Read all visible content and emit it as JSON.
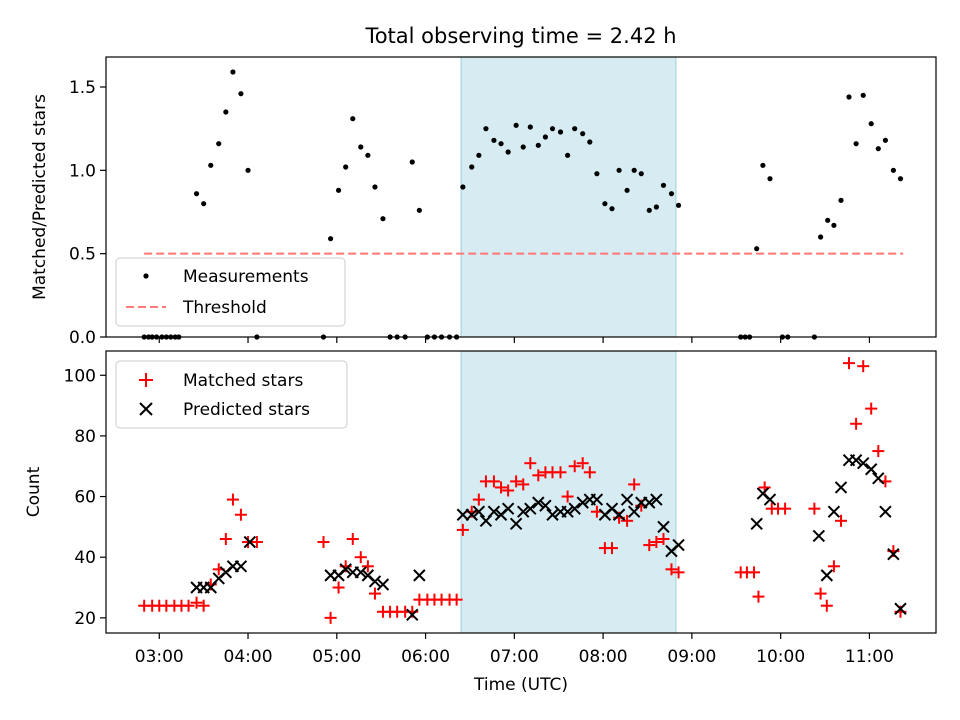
{
  "title": "Total observing time = 2.42 h",
  "chart_data": [
    {
      "type": "scatter",
      "ylabel": "Matched/Predicted stars",
      "xlim": [
        2.4,
        11.75
      ],
      "ylim": [
        0,
        1.68
      ],
      "y_ticks": [
        0.0,
        0.5,
        1.0,
        1.5
      ],
      "y_tick_labels": [
        "0.0",
        "0.5",
        "1.0",
        "1.5"
      ],
      "shaded_span": [
        6.4,
        8.82
      ],
      "legend": {
        "position": "lower-left",
        "entries": [
          "Measurements",
          "Threshold"
        ]
      },
      "threshold": {
        "name": "Threshold",
        "y": 0.5,
        "x_range": [
          2.83,
          11.38
        ],
        "color": "#ff7777",
        "style": "dashed"
      },
      "series": [
        {
          "name": "Measurements",
          "color": "#000000",
          "points": [
            [
              2.83,
              0
            ],
            [
              2.88,
              0
            ],
            [
              2.92,
              0
            ],
            [
              2.97,
              0
            ],
            [
              3.03,
              0
            ],
            [
              3.08,
              0
            ],
            [
              3.13,
              0
            ],
            [
              3.18,
              0
            ],
            [
              3.22,
              0
            ],
            [
              3.42,
              0.86
            ],
            [
              3.5,
              0.8
            ],
            [
              3.58,
              1.03
            ],
            [
              3.67,
              1.16
            ],
            [
              3.75,
              1.35
            ],
            [
              3.83,
              1.59
            ],
            [
              3.92,
              1.46
            ],
            [
              4.0,
              1.0
            ],
            [
              4.1,
              0
            ],
            [
              4.85,
              0
            ],
            [
              4.93,
              0.59
            ],
            [
              5.02,
              0.88
            ],
            [
              5.1,
              1.02
            ],
            [
              5.18,
              1.31
            ],
            [
              5.27,
              1.14
            ],
            [
              5.35,
              1.09
            ],
            [
              5.43,
              0.9
            ],
            [
              5.52,
              0.71
            ],
            [
              5.6,
              0
            ],
            [
              5.68,
              0
            ],
            [
              5.77,
              0
            ],
            [
              5.85,
              1.05
            ],
            [
              5.93,
              0.76
            ],
            [
              6.02,
              0
            ],
            [
              6.1,
              0
            ],
            [
              6.18,
              0
            ],
            [
              6.27,
              0
            ],
            [
              6.35,
              0
            ],
            [
              6.42,
              0.9
            ],
            [
              6.52,
              1.02
            ],
            [
              6.6,
              1.09
            ],
            [
              6.68,
              1.25
            ],
            [
              6.77,
              1.18
            ],
            [
              6.85,
              1.16
            ],
            [
              6.93,
              1.11
            ],
            [
              7.02,
              1.27
            ],
            [
              7.1,
              1.14
            ],
            [
              7.18,
              1.26
            ],
            [
              7.27,
              1.15
            ],
            [
              7.35,
              1.2
            ],
            [
              7.43,
              1.25
            ],
            [
              7.52,
              1.23
            ],
            [
              7.6,
              1.09
            ],
            [
              7.68,
              1.25
            ],
            [
              7.77,
              1.22
            ],
            [
              7.85,
              1.17
            ],
            [
              7.93,
              0.98
            ],
            [
              8.02,
              0.8
            ],
            [
              8.1,
              0.77
            ],
            [
              8.18,
              1.0
            ],
            [
              8.27,
              0.88
            ],
            [
              8.35,
              1.0
            ],
            [
              8.43,
              0.98
            ],
            [
              8.52,
              0.76
            ],
            [
              8.6,
              0.78
            ],
            [
              8.68,
              0.91
            ],
            [
              8.77,
              0.86
            ],
            [
              8.85,
              0.79
            ],
            [
              9.55,
              0
            ],
            [
              9.6,
              0
            ],
            [
              9.65,
              0
            ],
            [
              9.73,
              0.53
            ],
            [
              9.8,
              1.03
            ],
            [
              9.88,
              0.95
            ],
            [
              10.02,
              0
            ],
            [
              10.08,
              0
            ],
            [
              10.38,
              0
            ],
            [
              10.45,
              0.6
            ],
            [
              10.53,
              0.7
            ],
            [
              10.6,
              0.67
            ],
            [
              10.68,
              0.82
            ],
            [
              10.77,
              1.44
            ],
            [
              10.85,
              1.16
            ],
            [
              10.93,
              1.45
            ],
            [
              11.02,
              1.28
            ],
            [
              11.1,
              1.13
            ],
            [
              11.18,
              1.18
            ],
            [
              11.27,
              1.0
            ],
            [
              11.35,
              0.95
            ]
          ]
        }
      ]
    },
    {
      "type": "scatter",
      "xlabel": "Time (UTC)",
      "ylabel": "Count",
      "xlim": [
        2.4,
        11.75
      ],
      "ylim": [
        15,
        108
      ],
      "x_ticks": [
        3,
        4,
        5,
        6,
        7,
        8,
        9,
        10,
        11
      ],
      "x_tick_labels": [
        "03:00",
        "04:00",
        "05:00",
        "06:00",
        "07:00",
        "08:00",
        "09:00",
        "10:00",
        "11:00"
      ],
      "y_ticks": [
        20,
        40,
        60,
        80,
        100
      ],
      "y_tick_labels": [
        "20",
        "40",
        "60",
        "80",
        "100"
      ],
      "shaded_span": [
        6.4,
        8.82
      ],
      "legend": {
        "position": "upper-left",
        "entries": [
          "Matched stars",
          "Predicted stars"
        ]
      },
      "series": [
        {
          "name": "Matched stars",
          "marker": "+",
          "color": "#ff0000",
          "points": [
            [
              2.83,
              24
            ],
            [
              2.92,
              24
            ],
            [
              3.0,
              24
            ],
            [
              3.08,
              24
            ],
            [
              3.17,
              24
            ],
            [
              3.25,
              24
            ],
            [
              3.33,
              24
            ],
            [
              3.42,
              25
            ],
            [
              3.5,
              24
            ],
            [
              3.58,
              31
            ],
            [
              3.67,
              36
            ],
            [
              3.75,
              46
            ],
            [
              3.83,
              59
            ],
            [
              3.92,
              54
            ],
            [
              4.0,
              45
            ],
            [
              4.1,
              45
            ],
            [
              4.85,
              45
            ],
            [
              4.93,
              20
            ],
            [
              5.02,
              30
            ],
            [
              5.1,
              37
            ],
            [
              5.18,
              46
            ],
            [
              5.27,
              40
            ],
            [
              5.35,
              37
            ],
            [
              5.43,
              28
            ],
            [
              5.52,
              22
            ],
            [
              5.6,
              22
            ],
            [
              5.68,
              22
            ],
            [
              5.77,
              22
            ],
            [
              5.85,
              22
            ],
            [
              5.93,
              26
            ],
            [
              6.02,
              26
            ],
            [
              6.1,
              26
            ],
            [
              6.18,
              26
            ],
            [
              6.27,
              26
            ],
            [
              6.35,
              26
            ],
            [
              6.42,
              49
            ],
            [
              6.52,
              55
            ],
            [
              6.6,
              59
            ],
            [
              6.68,
              65
            ],
            [
              6.77,
              65
            ],
            [
              6.85,
              63
            ],
            [
              6.93,
              62
            ],
            [
              7.02,
              65
            ],
            [
              7.1,
              64
            ],
            [
              7.18,
              71
            ],
            [
              7.27,
              67
            ],
            [
              7.35,
              68
            ],
            [
              7.43,
              68
            ],
            [
              7.52,
              68
            ],
            [
              7.6,
              60
            ],
            [
              7.68,
              70
            ],
            [
              7.77,
              71
            ],
            [
              7.85,
              68
            ],
            [
              7.93,
              55
            ],
            [
              8.02,
              43
            ],
            [
              8.1,
              43
            ],
            [
              8.18,
              53
            ],
            [
              8.27,
              52
            ],
            [
              8.35,
              64
            ],
            [
              8.43,
              57
            ],
            [
              8.52,
              44
            ],
            [
              8.6,
              45
            ],
            [
              8.68,
              46
            ],
            [
              8.77,
              36
            ],
            [
              8.85,
              35
            ],
            [
              9.55,
              35
            ],
            [
              9.62,
              35
            ],
            [
              9.7,
              35
            ],
            [
              9.75,
              27
            ],
            [
              9.82,
              63
            ],
            [
              9.9,
              56
            ],
            [
              9.97,
              56
            ],
            [
              10.05,
              56
            ],
            [
              10.38,
              56
            ],
            [
              10.45,
              28
            ],
            [
              10.52,
              24
            ],
            [
              10.6,
              37
            ],
            [
              10.68,
              52
            ],
            [
              10.77,
              104
            ],
            [
              10.85,
              84
            ],
            [
              10.93,
              103
            ],
            [
              11.02,
              89
            ],
            [
              11.1,
              75
            ],
            [
              11.18,
              65
            ],
            [
              11.27,
              42
            ],
            [
              11.35,
              22
            ]
          ]
        },
        {
          "name": "Predicted stars",
          "marker": "x",
          "color": "#000000",
          "points": [
            [
              3.42,
              30
            ],
            [
              3.5,
              30
            ],
            [
              3.58,
              30
            ],
            [
              3.67,
              33
            ],
            [
              3.75,
              35
            ],
            [
              3.83,
              37
            ],
            [
              3.92,
              37
            ],
            [
              4.02,
              45
            ],
            [
              4.93,
              34
            ],
            [
              5.02,
              34
            ],
            [
              5.1,
              36
            ],
            [
              5.18,
              35
            ],
            [
              5.27,
              35
            ],
            [
              5.35,
              34
            ],
            [
              5.43,
              32
            ],
            [
              5.52,
              31
            ],
            [
              5.85,
              21
            ],
            [
              5.93,
              34
            ],
            [
              6.42,
              54
            ],
            [
              6.52,
              54
            ],
            [
              6.6,
              55
            ],
            [
              6.68,
              52
            ],
            [
              6.77,
              55
            ],
            [
              6.85,
              54
            ],
            [
              6.93,
              56
            ],
            [
              7.02,
              51
            ],
            [
              7.1,
              55
            ],
            [
              7.18,
              56
            ],
            [
              7.27,
              58
            ],
            [
              7.35,
              57
            ],
            [
              7.43,
              54
            ],
            [
              7.52,
              55
            ],
            [
              7.6,
              55
            ],
            [
              7.68,
              56
            ],
            [
              7.77,
              58
            ],
            [
              7.85,
              59
            ],
            [
              7.93,
              59
            ],
            [
              8.02,
              54
            ],
            [
              8.1,
              56
            ],
            [
              8.18,
              54
            ],
            [
              8.27,
              59
            ],
            [
              8.35,
              55
            ],
            [
              8.43,
              58
            ],
            [
              8.52,
              58
            ],
            [
              8.6,
              59
            ],
            [
              8.68,
              50
            ],
            [
              8.77,
              42
            ],
            [
              8.85,
              44
            ],
            [
              9.73,
              51
            ],
            [
              9.8,
              61
            ],
            [
              9.88,
              59
            ],
            [
              10.43,
              47
            ],
            [
              10.52,
              34
            ],
            [
              10.6,
              55
            ],
            [
              10.68,
              63
            ],
            [
              10.77,
              72
            ],
            [
              10.85,
              72
            ],
            [
              10.93,
              71
            ],
            [
              11.02,
              69
            ],
            [
              11.1,
              66
            ],
            [
              11.18,
              55
            ],
            [
              11.27,
              41
            ],
            [
              11.35,
              23
            ]
          ]
        }
      ]
    }
  ]
}
